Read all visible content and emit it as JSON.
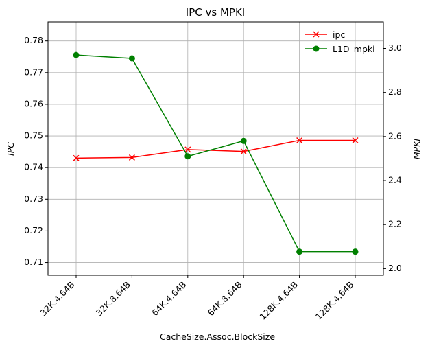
{
  "chart_data": {
    "type": "line",
    "title": "IPC vs MPKI",
    "xlabel": "CacheSize.Assoc.BlockSize",
    "ylabel_left": "IPC",
    "ylabel_right": "MPKI",
    "categories": [
      "32K.4.64B",
      "32K.8.64B",
      "64K.4.64B",
      "64K.8.64B",
      "128K.4.64B",
      "128K.4.64B"
    ],
    "series": [
      {
        "name": "ipc",
        "axis": "left",
        "color": "#ff0000",
        "marker": "x",
        "values": [
          0.743,
          0.7432,
          0.7457,
          0.7451,
          0.7486,
          0.7486
        ]
      },
      {
        "name": "L1D_mpki",
        "axis": "right",
        "color": "#008000",
        "marker": "circle",
        "values": [
          2.97,
          2.955,
          2.51,
          2.58,
          2.077,
          2.077
        ]
      }
    ],
    "ylim_left": [
      0.706,
      0.786
    ],
    "yticks_left": [
      "0.71",
      "0.72",
      "0.73",
      "0.74",
      "0.75",
      "0.76",
      "0.77",
      "0.78"
    ],
    "ylim_right": [
      1.97,
      3.12
    ],
    "yticks_right": [
      "2.0",
      "2.2",
      "2.4",
      "2.6",
      "2.8",
      "3.0"
    ],
    "grid": true,
    "legend_position": "top-right"
  }
}
